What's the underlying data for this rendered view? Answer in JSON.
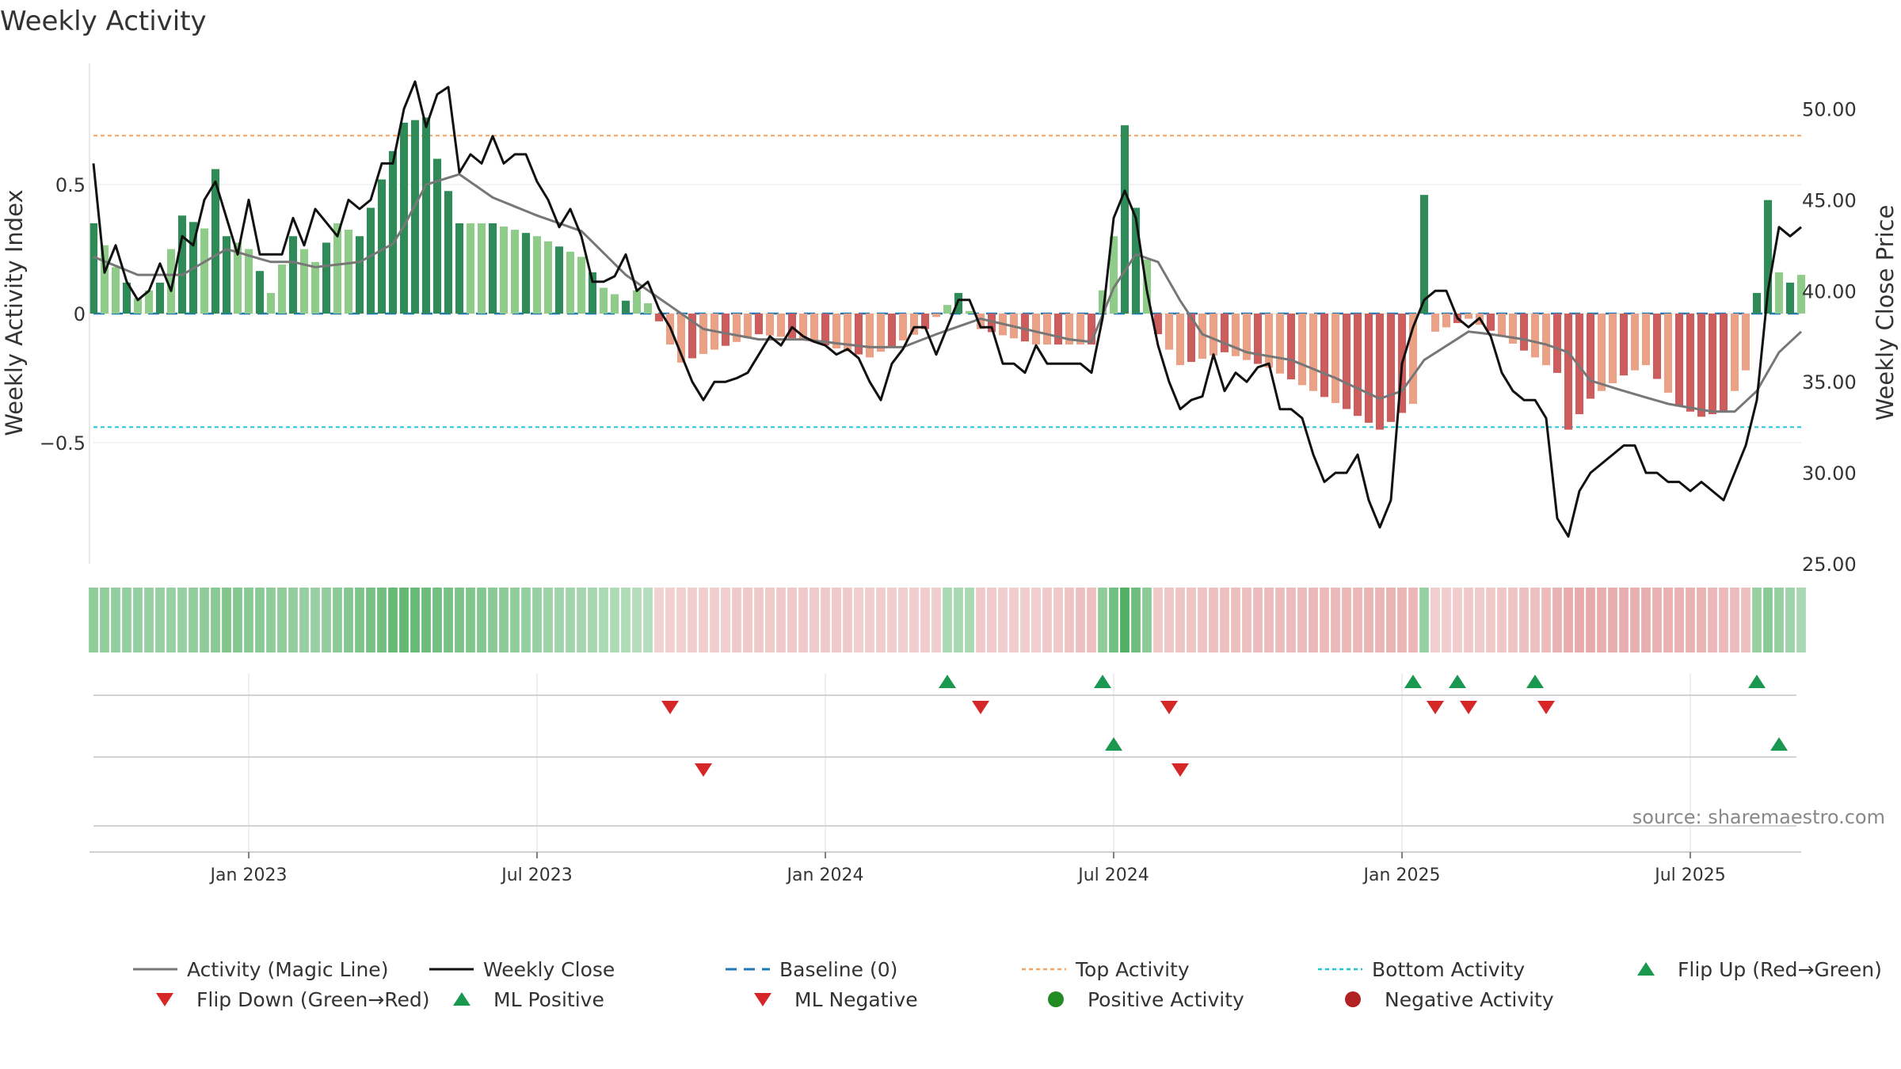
{
  "chart_data": {
    "type": "bar+line",
    "title": "Weekly Activity",
    "ylabel_left": "Weekly Activity Index",
    "ylabel_right": "Weekly Close Price",
    "left_ticks": [
      {
        "v": 0.5,
        "label": "0.5"
      },
      {
        "v": 0,
        "label": "0"
      },
      {
        "v": -0.5,
        "label": "−0.5"
      }
    ],
    "right_ticks": [
      {
        "v": 50,
        "label": "50.00"
      },
      {
        "v": 45,
        "label": "45.00"
      },
      {
        "v": 40,
        "label": "40.00"
      },
      {
        "v": 35,
        "label": "35.00"
      },
      {
        "v": 30,
        "label": "30.00"
      },
      {
        "v": 25,
        "label": "25.00"
      }
    ],
    "left_range": [
      -0.97,
      0.97
    ],
    "right_range": [
      25,
      52.5
    ],
    "x_ticks": [
      {
        "week": 14,
        "label": "Jan 2023"
      },
      {
        "week": 40,
        "label": "Jul 2023"
      },
      {
        "week": 66,
        "label": "Jan 2024"
      },
      {
        "week": 92,
        "label": "Jul 2024"
      },
      {
        "week": 118,
        "label": "Jan 2025"
      },
      {
        "week": 144,
        "label": "Jul 2025"
      }
    ],
    "top_activity": 0.69,
    "bottom_activity": -0.44,
    "source_text": "source: sharemaestro.com",
    "keyframes": {
      "activity": [
        [
          0,
          0.35
        ],
        [
          2,
          0.18
        ],
        [
          4,
          0.06
        ],
        [
          6,
          0.12
        ],
        [
          8,
          0.38
        ],
        [
          10,
          0.33
        ],
        [
          11,
          0.56
        ],
        [
          12,
          0.3
        ],
        [
          14,
          0.25
        ],
        [
          16,
          0.08
        ],
        [
          18,
          0.3
        ],
        [
          20,
          0.2
        ],
        [
          22,
          0.35
        ],
        [
          24,
          0.3
        ],
        [
          26,
          0.52
        ],
        [
          28,
          0.74
        ],
        [
          30,
          0.76
        ],
        [
          31,
          0.6
        ],
        [
          33,
          0.35
        ],
        [
          36,
          0.35
        ],
        [
          40,
          0.3
        ],
        [
          44,
          0.22
        ],
        [
          46,
          0.1
        ],
        [
          48,
          0.05
        ],
        [
          49,
          0.09
        ],
        [
          50,
          0.04
        ],
        [
          51,
          -0.03
        ],
        [
          52,
          -0.12
        ],
        [
          53,
          -0.19
        ],
        [
          56,
          -0.14
        ],
        [
          60,
          -0.08
        ],
        [
          64,
          -0.1
        ],
        [
          70,
          -0.17
        ],
        [
          75,
          -0.06
        ],
        [
          78,
          0.08
        ],
        [
          80,
          -0.06
        ],
        [
          85,
          -0.12
        ],
        [
          90,
          -0.12
        ],
        [
          92,
          0.3
        ],
        [
          93,
          0.73
        ],
        [
          94,
          0.41
        ],
        [
          95,
          0.21
        ],
        [
          96,
          -0.08
        ],
        [
          98,
          -0.2
        ],
        [
          102,
          -0.15
        ],
        [
          106,
          -0.21
        ],
        [
          110,
          -0.3
        ],
        [
          113,
          -0.37
        ],
        [
          116,
          -0.45
        ],
        [
          117,
          -0.42
        ],
        [
          119,
          -0.35
        ],
        [
          120,
          0.46
        ],
        [
          121,
          -0.07
        ],
        [
          124,
          -0.02
        ],
        [
          127,
          -0.09
        ],
        [
          130,
          -0.17
        ],
        [
          132,
          -0.23
        ],
        [
          133,
          -0.45
        ],
        [
          135,
          -0.33
        ],
        [
          138,
          -0.24
        ],
        [
          140,
          -0.2
        ],
        [
          143,
          -0.36
        ],
        [
          145,
          -0.4
        ],
        [
          147,
          -0.38
        ],
        [
          149,
          -0.22
        ],
        [
          150,
          0.08
        ],
        [
          151,
          0.44
        ],
        [
          152,
          0.16
        ],
        [
          153,
          0.12
        ],
        [
          154,
          0.15
        ]
      ],
      "magic": [
        [
          0,
          0.22
        ],
        [
          4,
          0.15
        ],
        [
          8,
          0.15
        ],
        [
          12,
          0.25
        ],
        [
          16,
          0.2
        ],
        [
          18,
          0.2
        ],
        [
          20,
          0.18
        ],
        [
          24,
          0.2
        ],
        [
          27,
          0.27
        ],
        [
          28,
          0.34
        ],
        [
          30,
          0.5
        ],
        [
          33,
          0.54
        ],
        [
          36,
          0.45
        ],
        [
          40,
          0.38
        ],
        [
          44,
          0.32
        ],
        [
          48,
          0.15
        ],
        [
          52,
          0.03
        ],
        [
          55,
          -0.06
        ],
        [
          60,
          -0.1
        ],
        [
          64,
          -0.1
        ],
        [
          70,
          -0.13
        ],
        [
          73,
          -0.13
        ],
        [
          76,
          -0.08
        ],
        [
          80,
          -0.02
        ],
        [
          84,
          -0.06
        ],
        [
          88,
          -0.1
        ],
        [
          90,
          -0.11
        ],
        [
          92,
          0.1
        ],
        [
          94,
          0.23
        ],
        [
          96,
          0.2
        ],
        [
          98,
          0.05
        ],
        [
          100,
          -0.08
        ],
        [
          104,
          -0.15
        ],
        [
          108,
          -0.18
        ],
        [
          112,
          -0.25
        ],
        [
          116,
          -0.33
        ],
        [
          118,
          -0.3
        ],
        [
          120,
          -0.18
        ],
        [
          124,
          -0.07
        ],
        [
          126,
          -0.08
        ],
        [
          129,
          -0.1
        ],
        [
          131,
          -0.12
        ],
        [
          133,
          -0.15
        ],
        [
          135,
          -0.26
        ],
        [
          138,
          -0.3
        ],
        [
          142,
          -0.35
        ],
        [
          146,
          -0.38
        ],
        [
          148,
          -0.38
        ],
        [
          150,
          -0.3
        ],
        [
          152,
          -0.15
        ],
        [
          154,
          -0.07
        ]
      ],
      "close": [
        [
          0,
          47
        ],
        [
          1,
          41
        ],
        [
          2,
          42.5
        ],
        [
          3,
          40.5
        ],
        [
          4,
          39.5
        ],
        [
          5,
          40
        ],
        [
          6,
          41.5
        ],
        [
          7,
          40
        ],
        [
          8,
          43
        ],
        [
          9,
          42.5
        ],
        [
          10,
          45
        ],
        [
          11,
          46
        ],
        [
          12,
          44
        ],
        [
          13,
          42
        ],
        [
          14,
          45
        ],
        [
          15,
          42
        ],
        [
          16,
          42
        ],
        [
          17,
          42
        ],
        [
          18,
          44
        ],
        [
          19,
          42.5
        ],
        [
          20,
          44.5
        ],
        [
          22,
          43
        ],
        [
          23,
          45
        ],
        [
          24,
          44.5
        ],
        [
          25,
          45
        ],
        [
          26,
          47
        ],
        [
          27,
          47
        ],
        [
          28,
          50
        ],
        [
          29,
          51.5
        ],
        [
          30,
          49
        ],
        [
          31,
          50.8
        ],
        [
          32,
          51.2
        ],
        [
          33,
          46.5
        ],
        [
          34,
          47.5
        ],
        [
          35,
          47
        ],
        [
          36,
          48.5
        ],
        [
          37,
          47
        ],
        [
          38,
          47.5
        ],
        [
          39,
          47.5
        ],
        [
          40,
          46
        ],
        [
          41,
          45
        ],
        [
          42,
          43.5
        ],
        [
          43,
          44.5
        ],
        [
          44,
          43
        ],
        [
          45,
          40.5
        ],
        [
          46,
          40.5
        ],
        [
          47,
          40.8
        ],
        [
          48,
          42
        ],
        [
          49,
          40
        ],
        [
          50,
          40.5
        ],
        [
          51,
          39
        ],
        [
          52,
          38
        ],
        [
          53,
          36.5
        ],
        [
          54,
          35
        ],
        [
          55,
          34
        ],
        [
          56,
          35
        ],
        [
          57,
          35
        ],
        [
          58,
          35.2
        ],
        [
          59,
          35.5
        ],
        [
          60,
          36.5
        ],
        [
          61,
          37.5
        ],
        [
          62,
          37
        ],
        [
          63,
          38
        ],
        [
          64,
          37.5
        ],
        [
          65,
          37.2
        ],
        [
          66,
          37
        ],
        [
          67,
          36.5
        ],
        [
          68,
          36.8
        ],
        [
          69,
          36.3
        ],
        [
          70,
          35
        ],
        [
          71,
          34
        ],
        [
          72,
          36
        ],
        [
          73,
          36.8
        ],
        [
          74,
          38
        ],
        [
          75,
          38
        ],
        [
          76,
          36.5
        ],
        [
          77,
          38
        ],
        [
          78,
          39.5
        ],
        [
          79,
          39.5
        ],
        [
          80,
          38
        ],
        [
          81,
          38
        ],
        [
          82,
          36
        ],
        [
          83,
          36
        ],
        [
          84,
          35.5
        ],
        [
          85,
          37
        ],
        [
          86,
          36
        ],
        [
          87,
          36
        ],
        [
          88,
          36
        ],
        [
          89,
          36
        ],
        [
          90,
          35.5
        ],
        [
          91,
          38.5
        ],
        [
          92,
          44
        ],
        [
          93,
          45.5
        ],
        [
          94,
          44
        ],
        [
          95,
          40
        ],
        [
          96,
          37
        ],
        [
          97,
          35
        ],
        [
          98,
          33.5
        ],
        [
          99,
          34
        ],
        [
          100,
          34.2
        ],
        [
          101,
          36.5
        ],
        [
          102,
          34.5
        ],
        [
          103,
          35.5
        ],
        [
          104,
          35
        ],
        [
          105,
          35.8
        ],
        [
          106,
          36
        ],
        [
          107,
          33.5
        ],
        [
          108,
          33.5
        ],
        [
          109,
          33
        ],
        [
          110,
          31
        ],
        [
          111,
          29.5
        ],
        [
          112,
          30
        ],
        [
          113,
          30
        ],
        [
          114,
          31
        ],
        [
          115,
          28.5
        ],
        [
          116,
          27
        ],
        [
          117,
          28.5
        ],
        [
          118,
          36
        ],
        [
          119,
          38
        ],
        [
          120,
          39.5
        ],
        [
          121,
          40
        ],
        [
          122,
          40
        ],
        [
          123,
          38.5
        ],
        [
          124,
          38
        ],
        [
          125,
          38.5
        ],
        [
          126,
          37.5
        ],
        [
          127,
          35.5
        ],
        [
          128,
          34.5
        ],
        [
          129,
          34
        ],
        [
          130,
          34
        ],
        [
          131,
          33
        ],
        [
          132,
          27.5
        ],
        [
          133,
          26.5
        ],
        [
          134,
          29
        ],
        [
          135,
          30
        ],
        [
          136,
          30.5
        ],
        [
          137,
          31
        ],
        [
          138,
          31.5
        ],
        [
          139,
          31.5
        ],
        [
          140,
          30
        ],
        [
          141,
          30
        ],
        [
          142,
          29.5
        ],
        [
          143,
          29.5
        ],
        [
          144,
          29
        ],
        [
          145,
          29.5
        ],
        [
          146,
          29
        ],
        [
          147,
          28.5
        ],
        [
          148,
          30
        ],
        [
          149,
          31.5
        ],
        [
          150,
          34
        ],
        [
          151,
          40
        ],
        [
          152,
          43.5
        ],
        [
          153,
          43
        ],
        [
          154,
          43.5
        ]
      ],
      "strength": [
        [
          0,
          0.5
        ],
        [
          8,
          0.45
        ],
        [
          12,
          0.6
        ],
        [
          20,
          0.45
        ],
        [
          28,
          0.8
        ],
        [
          31,
          0.7
        ],
        [
          40,
          0.45
        ],
        [
          48,
          0.3
        ],
        [
          51,
          0.25
        ],
        [
          60,
          0.35
        ],
        [
          75,
          0.3
        ],
        [
          78,
          0.35
        ],
        [
          85,
          0.3
        ],
        [
          91,
          0.5
        ],
        [
          93,
          0.9
        ],
        [
          96,
          0.35
        ],
        [
          101,
          0.45
        ],
        [
          113,
          0.55
        ],
        [
          117,
          0.6
        ],
        [
          119,
          0.55
        ],
        [
          120,
          0.45
        ],
        [
          121,
          0.3
        ],
        [
          126,
          0.35
        ],
        [
          131,
          0.5
        ],
        [
          133,
          0.7
        ],
        [
          145,
          0.6
        ],
        [
          149,
          0.45
        ],
        [
          150,
          0.45
        ],
        [
          151,
          0.55
        ],
        [
          154,
          0.35
        ]
      ]
    },
    "week_count": 155,
    "flip_up_weeks": [
      77,
      91,
      119,
      123,
      130,
      150
    ],
    "flip_down_weeks": [
      52,
      80,
      97,
      121,
      124,
      131
    ],
    "ml_positive_weeks": [
      92,
      152
    ],
    "ml_negative_weeks": [
      55,
      98
    ],
    "legend": [
      {
        "label": "Activity (Magic Line)",
        "symbol": "line",
        "color": "#777777"
      },
      {
        "label": "Weekly Close",
        "symbol": "line",
        "color": "#111111"
      },
      {
        "label": "Baseline (0)",
        "symbol": "dashed",
        "color": "#1f77b4"
      },
      {
        "label": "Top Activity",
        "symbol": "dotted",
        "color": "#f4a460"
      },
      {
        "label": "Bottom Activity",
        "symbol": "dotted",
        "color": "#22c3d6"
      },
      {
        "label": "Flip Up (Red→Green)",
        "symbol": "triangle-up",
        "color": "#1a9850"
      },
      {
        "label": "Flip Down (Green→Red)",
        "symbol": "triangle-down",
        "color": "#d62728"
      },
      {
        "label": "ML Positive",
        "symbol": "triangle-up",
        "color": "#1a9850"
      },
      {
        "label": "ML Negative",
        "symbol": "triangle-down",
        "color": "#d62728"
      },
      {
        "label": "Positive Activity",
        "symbol": "circle",
        "color": "#228b22"
      },
      {
        "label": "Negative Activity",
        "symbol": "circle",
        "color": "#b22222"
      }
    ],
    "colors": {
      "pos_strong": "#2e8b57",
      "pos_weak": "#8fcc8a",
      "neg_strong": "#cd5c5c",
      "neg_weak": "#eba185",
      "magic_line": "#777777",
      "close_line": "#111111",
      "baseline": "#1f77b4",
      "top_line": "#f4a460",
      "bottom_line": "#22c3d6",
      "flip_up": "#1a9850",
      "flip_down": "#d62728"
    }
  }
}
